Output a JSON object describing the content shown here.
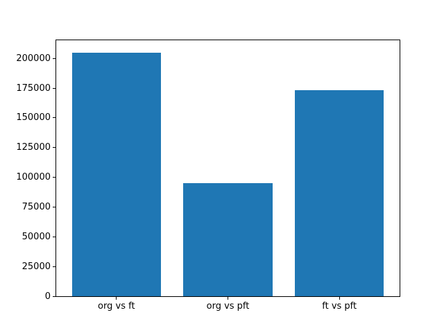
{
  "figure": {
    "background": "#ffffff",
    "spine_color": "#000000",
    "tick_color": "#000000",
    "label_color": "#000000"
  },
  "chart_data": {
    "type": "bar",
    "title": "",
    "xlabel": "",
    "ylabel": "",
    "categories": [
      "org vs ft",
      "org vs pft",
      "ft vs pft"
    ],
    "values": [
      205000,
      95000,
      173500
    ],
    "bar_color": "#1f77b4",
    "bar_positions": [
      0,
      1,
      2
    ],
    "bar_width": 0.8,
    "xlim": [
      -0.54,
      2.54
    ],
    "ylim": [
      0,
      215250
    ],
    "yticks": [
      0,
      25000,
      50000,
      75000,
      100000,
      125000,
      150000,
      175000,
      200000
    ],
    "ytick_labels": [
      "0",
      "25000",
      "50000",
      "75000",
      "100000",
      "125000",
      "150000",
      "175000",
      "200000"
    ],
    "grid": false,
    "legend": null
  }
}
